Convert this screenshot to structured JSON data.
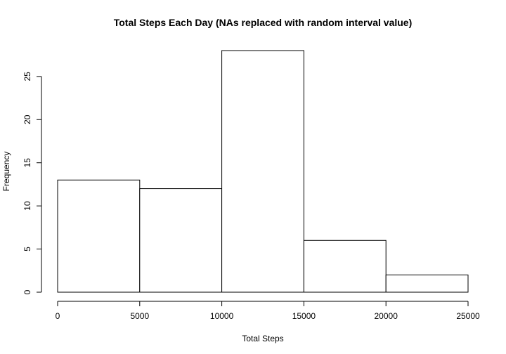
{
  "chart_data": {
    "type": "bar",
    "title": "Total Steps Each Day (NAs replaced with random interval value)",
    "xlabel": "Total Steps",
    "ylabel": "Frequency",
    "bins": [
      {
        "from": 0,
        "to": 5000,
        "count": 13
      },
      {
        "from": 5000,
        "to": 10000,
        "count": 12
      },
      {
        "from": 10000,
        "to": 15000,
        "count": 28
      },
      {
        "from": 15000,
        "to": 20000,
        "count": 6
      },
      {
        "from": 20000,
        "to": 25000,
        "count": 2
      }
    ],
    "xlim": [
      0,
      25000
    ],
    "ylim": [
      0,
      28
    ],
    "xticks": [
      0,
      5000,
      10000,
      15000,
      20000,
      25000
    ],
    "yticks": [
      0,
      5,
      10,
      15,
      20,
      25
    ],
    "grid": false,
    "colors": {
      "bar_fill": "#ffffff",
      "bar_stroke": "#000000",
      "background": "#ffffff"
    }
  }
}
